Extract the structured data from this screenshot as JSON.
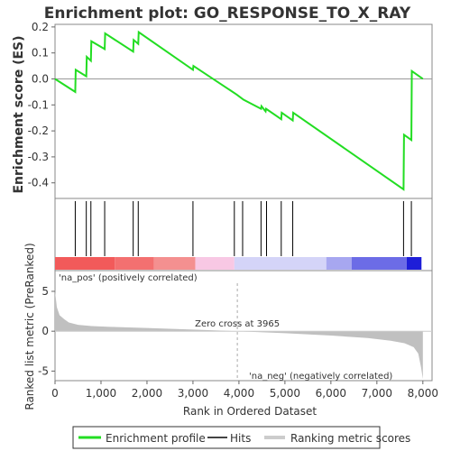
{
  "chart_data": {
    "type": "line",
    "title": "Enrichment plot: GO_RESPONSE_TO_X_RAY",
    "colors": {
      "enrichment_line": "#22dd22",
      "hits": "#000000",
      "metric_fill": "#c0c0c0",
      "zero_line": "#888888",
      "pos_label": "#ff3030",
      "neg_label": "#2b2bff",
      "panel_border": "#888888"
    },
    "top_panel": {
      "ylabel": "Enrichment score (ES)",
      "ylim": [
        -0.46,
        0.21
      ],
      "yticks": [
        "-0.4",
        "-0.3",
        "-0.2",
        "-0.1",
        "0.0",
        "0.1",
        "0.2"
      ],
      "ytick_values": [
        -0.4,
        -0.3,
        -0.2,
        -0.1,
        0.0,
        0.1,
        0.2
      ],
      "series": [
        {
          "name": "Enrichment profile",
          "x": [
            0,
            440,
            450,
            680,
            690,
            780,
            790,
            1080,
            1090,
            1700,
            1710,
            1810,
            1820,
            3000,
            3010,
            3950,
            4100,
            4480,
            4490,
            4580,
            4590,
            4920,
            4930,
            5170,
            5180,
            7580,
            7590,
            7750,
            7760,
            8000
          ],
          "y": [
            0.0,
            -0.05,
            0.035,
            0.01,
            0.085,
            0.07,
            0.145,
            0.115,
            0.175,
            0.105,
            0.15,
            0.135,
            0.18,
            0.035,
            0.05,
            -0.06,
            -0.08,
            -0.115,
            -0.105,
            -0.125,
            -0.115,
            -0.155,
            -0.13,
            -0.16,
            -0.13,
            -0.425,
            -0.215,
            -0.235,
            0.03,
            0.0
          ]
        }
      ]
    },
    "hits_panel": {
      "hit_positions": [
        440,
        680,
        780,
        1080,
        1700,
        1810,
        3000,
        3900,
        4080,
        4480,
        4600,
        4920,
        5170,
        7580,
        7750
      ],
      "color_bar_segments": [
        {
          "x0": 0,
          "x1": 1300,
          "color": "#f25a5a"
        },
        {
          "x0": 1300,
          "x1": 2150,
          "color": "#f37070"
        },
        {
          "x0": 2150,
          "x1": 3050,
          "color": "#f49090"
        },
        {
          "x0": 3050,
          "x1": 3900,
          "color": "#f8c8e4"
        },
        {
          "x0": 3900,
          "x1": 5900,
          "color": "#d4d4f8"
        },
        {
          "x0": 5900,
          "x1": 6450,
          "color": "#a7a7f0"
        },
        {
          "x0": 6450,
          "x1": 7650,
          "color": "#6c6ce6"
        },
        {
          "x0": 7650,
          "x1": 7970,
          "color": "#1e1ed8"
        }
      ]
    },
    "bottom_panel": {
      "ylabel": "Ranked list metric (PreRanked)",
      "ylim": [
        -6.2,
        7.6
      ],
      "yticks": [
        "-5",
        "0",
        "5"
      ],
      "ytick_values": [
        -5,
        0,
        5
      ],
      "metric_curve": {
        "x": [
          0,
          40,
          100,
          200,
          300,
          500,
          800,
          1200,
          2000,
          3000,
          3965,
          5000,
          6000,
          6800,
          7300,
          7600,
          7800,
          7900,
          7960,
          8000
        ],
        "y": [
          5.0,
          3.0,
          2.0,
          1.5,
          1.1,
          0.8,
          0.65,
          0.55,
          0.4,
          0.2,
          0.0,
          -0.25,
          -0.55,
          -0.85,
          -1.2,
          -1.5,
          -2.0,
          -2.8,
          -4.5,
          -6.0
        ]
      },
      "zero_cross_label": "Zero cross at 3965",
      "zero_cross_x": 3965,
      "pos_label": "'na_pos' (positively correlated)",
      "neg_label": "'na_neg' (negatively correlated)"
    },
    "xlabel": "Rank in Ordered Dataset",
    "xlim": [
      0,
      8200
    ],
    "xticks": [
      "0",
      "1,000",
      "2,000",
      "3,000",
      "4,000",
      "5,000",
      "6,000",
      "7,000",
      "8,000"
    ],
    "xtick_values": [
      0,
      1000,
      2000,
      3000,
      4000,
      5000,
      6000,
      7000,
      8000
    ],
    "legend": {
      "position": "bottom",
      "entries": [
        "Enrichment profile",
        "Hits",
        "Ranking metric scores"
      ]
    }
  }
}
